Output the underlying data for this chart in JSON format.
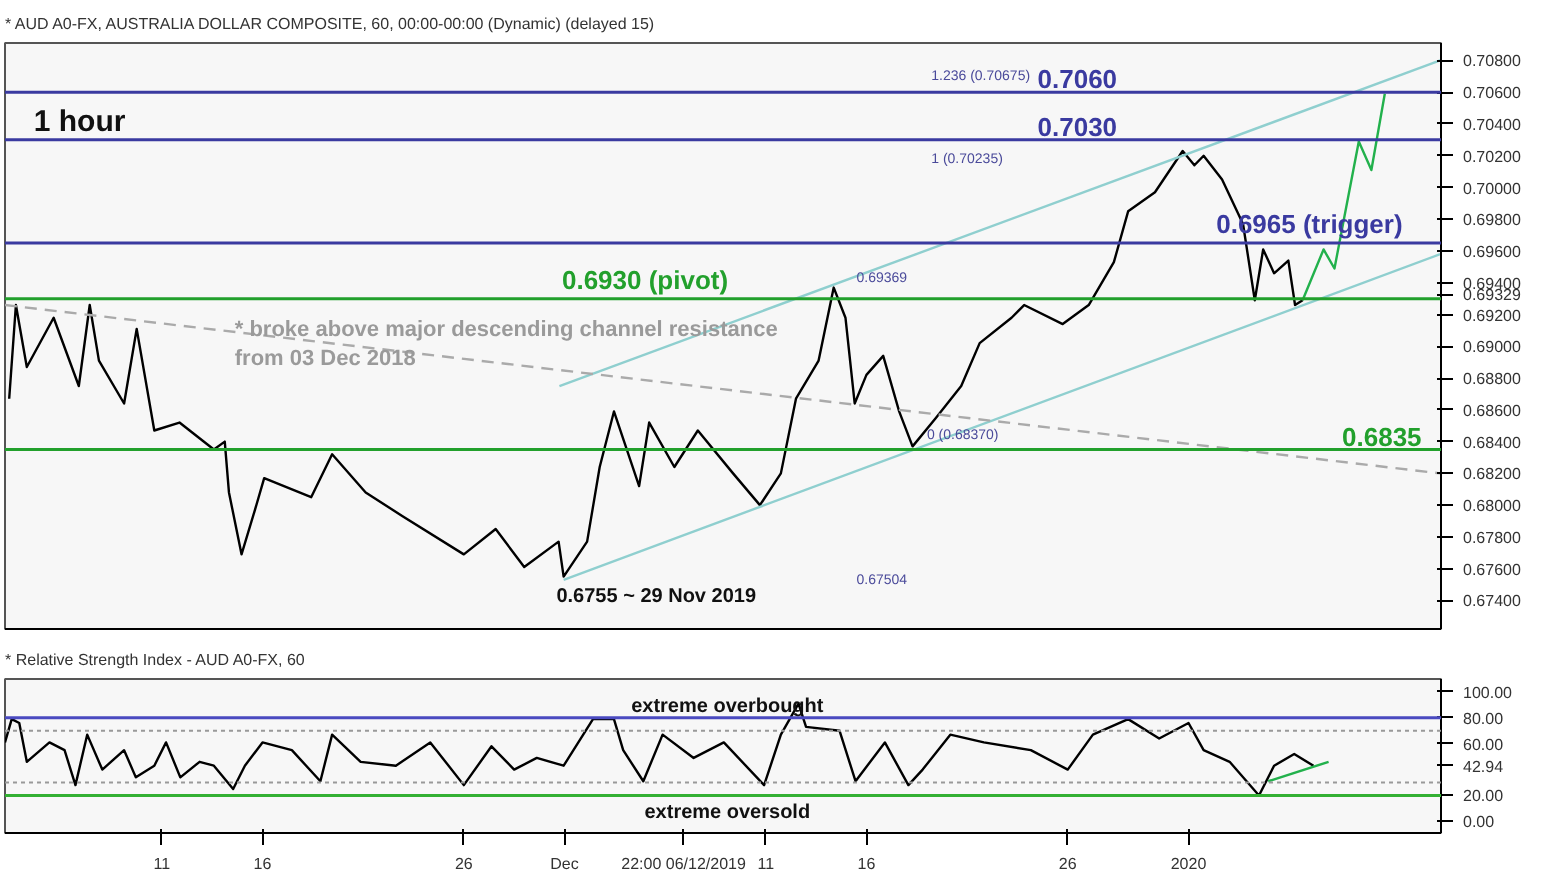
{
  "chart_data": [
    {
      "type": "line",
      "title": "* AUD A0-FX, AUSTRALIA DOLLAR COMPOSITE, 60, 00:00-00:00 (Dynamic) (delayed 15)",
      "series": [
        {
          "color": "#000000",
          "x": [
            "2019-11-03T10:00",
            "2019-11-03T18:00",
            "2019-11-04T07:00",
            "2019-11-05T15:00",
            "2019-11-06T21:00",
            "2019-11-07T10:00",
            "2019-11-07T21:00",
            "2019-11-09T03:00",
            "2019-11-09T18:00",
            "2019-11-10T15:00",
            "2019-11-11T21:00",
            "2019-11-13T14:00",
            "2019-11-14T03:00",
            "2019-11-14T08:00",
            "2019-11-14T23:00",
            "2019-11-15T15:00",
            "2019-11-16T02:00",
            "2019-11-18T10:00",
            "2019-11-19T11:00",
            "2019-11-21T03:00",
            "2019-11-22T23:00",
            "2019-11-26T00:00",
            "2019-11-27T14:00",
            "2019-11-29T00:00",
            "2019-11-30T17:00",
            "2019-11-30T23:00",
            "2019-12-02T03:00",
            "2019-12-02T18:00",
            "2019-12-03T11:00",
            "2019-12-04T17:00",
            "2019-12-05T05:00",
            "2019-12-06T11:00",
            "2019-12-07T15:00",
            "2019-12-09T09:00",
            "2019-12-10T17:00",
            "2019-12-11T18:00",
            "2019-12-12T12:00",
            "2019-12-13T15:00",
            "2019-12-14T09:00",
            "2019-12-14T23:00",
            "2019-12-15T10:00",
            "2019-12-16T00:00",
            "2019-12-16T20:00",
            "2019-12-17T15:00",
            "2019-12-18T07:00",
            "2019-12-19T11:00",
            "2019-12-20T17:00",
            "2019-12-21T15:00",
            "2019-12-23T05:00",
            "2019-12-23T20:00",
            "2019-12-25T18:00",
            "2019-12-27T01:00",
            "2019-12-28T07:00",
            "2019-12-29T00:00",
            "2019-12-30T08:00",
            "2019-12-31T17:00",
            "2020-01-01T07:00",
            "2020-01-01T18:00",
            "2020-01-02T16:00",
            "2020-01-03T17:00",
            "2020-01-04T07:00",
            "2020-01-04T17:00",
            "2020-01-05T06:00",
            "2020-01-05T23:00",
            "2020-01-06T07:00",
            "2020-01-06T16:00"
          ],
          "values": [
            0.6867,
            0.6926,
            0.6887,
            0.6918,
            0.6875,
            0.6926,
            0.6891,
            0.6864,
            0.6911,
            0.6847,
            0.6852,
            0.6835,
            0.684,
            0.6808,
            0.6769,
            0.6797,
            0.6817,
            0.6805,
            0.6832,
            0.6808,
            0.6793,
            0.6769,
            0.6785,
            0.6761,
            0.6777,
            0.6755,
            0.6777,
            0.6824,
            0.6859,
            0.6812,
            0.6852,
            0.6824,
            0.6847,
            0.682,
            0.68,
            0.682,
            0.6867,
            0.6891,
            0.6937,
            0.6918,
            0.6864,
            0.6882,
            0.6894,
            0.6859,
            0.6837,
            0.6855,
            0.6875,
            0.6902,
            0.6918,
            0.6926,
            0.6914,
            0.6926,
            0.6953,
            0.6985,
            0.6997,
            0.7023,
            0.7014,
            0.702,
            0.7005,
            0.6977,
            0.6929,
            0.6961,
            0.6946,
            0.6954,
            0.6926,
            0.6929
          ]
        },
        {
          "color": "#22b14c",
          "x": [
            "2020-01-06T16:00",
            "2020-01-07T17:00",
            "2020-01-08T06:00",
            "2020-01-09T11:00",
            "2020-01-10T02:00",
            "2020-01-10T18:00"
          ],
          "values": [
            0.6929,
            0.6961,
            0.6949,
            0.7029,
            0.7011,
            0.7059
          ]
        },
        {
          "color": "#8fcfcf",
          "x": [
            "2019-11-30T18:00",
            "2020-01-13T12:00"
          ],
          "values": [
            0.6875,
            0.708
          ]
        },
        {
          "color": "#8fcfcf",
          "x": [
            "2019-11-30T23:00",
            "2020-01-13T12:00"
          ],
          "values": [
            0.6753,
            0.6958
          ]
        },
        {
          "color": "#aaaaaa",
          "line_style": "dashed",
          "x": [
            "2019-11-03T05:00",
            "2020-01-13T12:00"
          ],
          "values": [
            0.6926,
            0.682
          ]
        }
      ],
      "xlim": [
        "2019-11-03T05:00",
        "2020-01-13T13:00"
      ],
      "ylim": [
        0.6722,
        0.7091
      ],
      "yticks": [
        {
          "value": 0.674,
          "label": "0.67400"
        },
        {
          "value": 0.676,
          "label": "0.67600"
        },
        {
          "value": 0.678,
          "label": "0.67800"
        },
        {
          "value": 0.68,
          "label": "0.68000"
        },
        {
          "value": 0.682,
          "label": "0.68200"
        },
        {
          "value": 0.684,
          "label": "0.68400"
        },
        {
          "value": 0.686,
          "label": "0.68600"
        },
        {
          "value": 0.688,
          "label": "0.68800"
        },
        {
          "value": 0.69,
          "label": "0.69000"
        },
        {
          "value": 0.692,
          "label": "0.69200"
        },
        {
          "value": 0.69329,
          "label": "0.69329"
        },
        {
          "value": 0.694,
          "label": "0.69400"
        },
        {
          "value": 0.696,
          "label": "0.69600"
        },
        {
          "value": 0.698,
          "label": "0.69800"
        },
        {
          "value": 0.7,
          "label": "0.70000"
        },
        {
          "value": 0.702,
          "label": "0.70200"
        },
        {
          "value": 0.704,
          "label": "0.70400"
        },
        {
          "value": 0.706,
          "label": "0.70600"
        },
        {
          "value": 0.708,
          "label": "0.70800"
        }
      ],
      "tick_labels": "y",
      "grid": false,
      "marker": "none",
      "ref_lines": [
        {
          "axis": "y",
          "value": 0.706,
          "color": "#3a3aa0"
        },
        {
          "axis": "y",
          "value": 0.703,
          "color": "#3a3aa0"
        },
        {
          "axis": "y",
          "value": 0.6965,
          "color": "#3a3aa0"
        },
        {
          "axis": "y",
          "value": 0.693,
          "color": "#22a02c"
        },
        {
          "axis": "y",
          "value": 0.6835,
          "color": "#22a02c"
        }
      ],
      "annotations": [
        "1 hour",
        "* broke above major descending channel resistance\nfrom 03 Dec 2018",
        "1.236 (0.70675)",
        "1 (0.70235)",
        "0.69369",
        "0 (0.68370)",
        "0.67504",
        "0.6755 ~ 29 Nov 2019",
        {
          "text": "0.7060",
          "x": "2019-12-24T12:00",
          "y": 0.706
        },
        {
          "text": "0.7030",
          "x": "2019-12-24T12:00",
          "y": 0.703
        },
        {
          "text": "0.6965 (trigger)",
          "x": "2020-01-02T09:00",
          "y": 0.6965
        },
        {
          "text": "0.6930 (pivot)",
          "x": "2019-11-30T21:00",
          "y": 0.693
        },
        {
          "text": "0.6835",
          "x": "2020-01-08T15:00",
          "y": 0.6835
        }
      ]
    },
    {
      "type": "line",
      "title": "* Relative Strength Index - AUD A0-FX, 60",
      "series": [
        {
          "color": "#000000",
          "x": [
            "2019-11-03T05:00",
            "2019-11-03T13:00",
            "2019-11-03T22:00",
            "2019-11-04T07:00",
            "2019-11-05T10:00",
            "2019-11-06T04:00",
            "2019-11-06T17:00",
            "2019-11-07T07:00",
            "2019-11-08T01:00",
            "2019-11-09T03:00",
            "2019-11-09T17:00",
            "2019-11-10T15:00",
            "2019-11-11T05:00",
            "2019-11-11T22:00",
            "2019-11-12T21:00",
            "2019-11-13T14:00",
            "2019-11-14T13:00",
            "2019-11-15T03:00",
            "2019-11-16T00:00",
            "2019-11-17T11:00",
            "2019-11-18T21:00",
            "2019-11-19T11:00",
            "2019-11-20T21:00",
            "2019-11-22T15:00",
            "2019-11-24T08:00",
            "2019-11-26T00:00",
            "2019-11-27T09:00",
            "2019-11-28T12:00",
            "2019-11-29T15:00",
            "2019-11-30T23:00",
            "2019-12-02T10:00",
            "2019-12-03T11:00",
            "2019-12-03T22:00",
            "2019-12-04T22:00",
            "2019-12-05T21:00",
            "2019-12-07T10:00",
            "2019-12-08T22:00",
            "2019-12-10T22:00",
            "2019-12-11T18:00",
            "2019-12-12T15:00",
            "2019-12-13T00:00",
            "2019-12-14T16:00",
            "2019-12-15T11:00",
            "2019-12-16T22:00",
            "2019-12-18T02:00",
            "2019-12-18T19:00",
            "2019-12-20T04:00",
            "2019-12-21T20:00",
            "2019-12-24T04:00",
            "2019-12-26T00:00",
            "2019-12-27T06:00",
            "2019-12-29T00:00",
            "2019-12-30T13:00",
            "2020-01-01T00:00",
            "2020-01-01T18:00",
            "2020-01-03T01:00",
            "2020-01-04T12:00",
            "2020-01-05T06:00",
            "2020-01-06T06:00",
            "2020-01-07T05:00"
          ],
          "values": [
            61,
            79,
            76,
            46,
            61,
            55,
            28,
            67,
            40,
            55,
            34,
            43,
            61,
            34,
            46,
            43,
            25,
            43,
            61,
            55,
            31,
            67,
            46,
            43,
            61,
            28,
            58,
            40,
            49,
            43,
            79,
            79,
            55,
            31,
            67,
            49,
            61,
            28,
            67,
            91,
            73,
            70,
            31,
            61,
            28,
            40,
            67,
            61,
            55,
            40,
            67,
            79,
            64,
            76,
            55,
            46,
            20,
            43,
            52,
            42.94
          ]
        },
        {
          "color": "#22b14c",
          "x": [
            "2020-01-04T23:00",
            "2020-01-07T23:00"
          ],
          "values": [
            31,
            46
          ]
        }
      ],
      "xlim": [
        "2019-11-03T05:00",
        "2020-01-13T13:00"
      ],
      "ylim": [
        -9,
        110
      ],
      "xticks": [
        {
          "value": "2019-11-11",
          "label": "11"
        },
        {
          "value": "2019-11-16",
          "label": "16"
        },
        {
          "value": "2019-11-26",
          "label": "26"
        },
        {
          "value": "2019-12-01",
          "label": "Dec"
        },
        {
          "value": "2019-12-06T22:00",
          "label": "22:00 06/12/2019"
        },
        {
          "value": "2019-12-11",
          "label": "11"
        },
        {
          "value": "2019-12-16",
          "label": "16"
        },
        {
          "value": "2019-12-26",
          "label": "26"
        },
        {
          "value": "2020-01-01",
          "label": "2020"
        }
      ],
      "yticks": [
        {
          "value": 0,
          "label": "0.00"
        },
        {
          "value": 20,
          "label": "20.00"
        },
        {
          "value": 42.94,
          "label": "42.94"
        },
        {
          "value": 60,
          "label": "60.00"
        },
        {
          "value": 80,
          "label": "80.00"
        },
        {
          "value": 100,
          "label": "100.00"
        }
      ],
      "grid": false,
      "marker": "none",
      "ref_lines": [
        {
          "axis": "y",
          "value": 80,
          "color": "#4a4ac0"
        },
        {
          "axis": "y",
          "value": 20,
          "color": "#33b033"
        },
        {
          "axis": "y",
          "value": 70,
          "color": "#999999",
          "line_style": "dotted"
        },
        {
          "axis": "y",
          "value": 30,
          "color": "#999999",
          "line_style": "dotted"
        }
      ],
      "annotations": [
        "extreme overbought",
        "extreme oversold"
      ]
    }
  ]
}
